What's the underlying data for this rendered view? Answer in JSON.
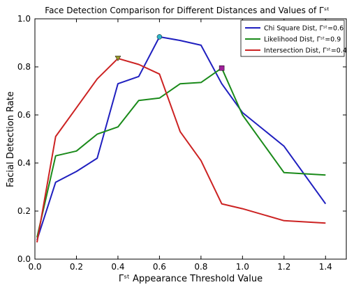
{
  "chart_data": {
    "type": "line",
    "title": "Face Detection Comparison for Different Distances and Values of Γˢᵗ",
    "xlabel": "Γˢᵗ Appearance Threshold Value",
    "ylabel": "Facial Detection Rate",
    "xlim": [
      0.0,
      1.5
    ],
    "ylim": [
      0.0,
      1.0
    ],
    "xticks": [
      "0.0",
      "0.2",
      "0.4",
      "0.6",
      "0.8",
      "1.0",
      "1.2",
      "1.4"
    ],
    "xtick_values": [
      0.0,
      0.2,
      0.4,
      0.6,
      0.8,
      1.0,
      1.2,
      1.4
    ],
    "yticks": [
      "0.0",
      "0.2",
      "0.4",
      "0.6",
      "0.8",
      "1.0"
    ],
    "ytick_values": [
      0.0,
      0.2,
      0.4,
      0.6,
      0.8,
      1.0
    ],
    "grid": false,
    "legend_position": "top-right",
    "series": [
      {
        "name": "Chi Square Dist, Γˢᵗ=0.6",
        "color": "#1f1fbf",
        "x": [
          0.01,
          0.1,
          0.2,
          0.3,
          0.4,
          0.5,
          0.6,
          0.7,
          0.8,
          0.9,
          1.0,
          1.2,
          1.4
        ],
        "y": [
          0.08,
          0.32,
          0.365,
          0.42,
          0.73,
          0.76,
          0.925,
          0.91,
          0.89,
          0.73,
          0.61,
          0.47,
          0.23
        ],
        "marker": {
          "x": 0.6,
          "y": 0.925,
          "shape": "circle",
          "color": "#2fb5c9"
        }
      },
      {
        "name": "Likelihood Dist, Γˢᵗ=0.9",
        "color": "#1a8a1a",
        "x": [
          0.01,
          0.1,
          0.2,
          0.3,
          0.4,
          0.5,
          0.6,
          0.7,
          0.8,
          0.9,
          1.0,
          1.2,
          1.4
        ],
        "y": [
          0.09,
          0.43,
          0.45,
          0.52,
          0.55,
          0.66,
          0.67,
          0.73,
          0.735,
          0.795,
          0.6,
          0.36,
          0.35
        ],
        "marker": {
          "x": 0.9,
          "y": 0.795,
          "shape": "square",
          "color": "#a0209a"
        }
      },
      {
        "name": "Intersection Dist, Γˢᵗ=0.4",
        "color": "#cc2222",
        "x": [
          0.01,
          0.1,
          0.2,
          0.3,
          0.4,
          0.5,
          0.6,
          0.7,
          0.8,
          0.9,
          1.0,
          1.2,
          1.4
        ],
        "y": [
          0.07,
          0.51,
          0.63,
          0.75,
          0.835,
          0.81,
          0.77,
          0.53,
          0.41,
          0.23,
          0.21,
          0.16,
          0.15
        ],
        "marker": {
          "x": 0.4,
          "y": 0.835,
          "shape": "triangle-down",
          "color": "#9a9a2a"
        }
      }
    ]
  }
}
